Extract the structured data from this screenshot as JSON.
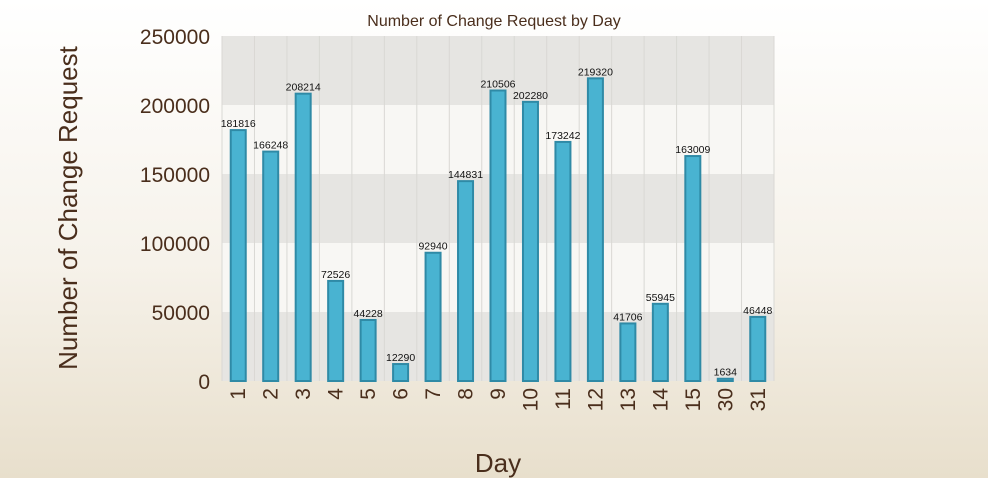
{
  "chart_data": {
    "type": "bar",
    "title": "Number of Change Request by Day",
    "xlabel": "Day",
    "ylabel": "Number of Change Request",
    "categories": [
      "1",
      "2",
      "3",
      "4",
      "5",
      "6",
      "7",
      "8",
      "9",
      "10",
      "11",
      "12",
      "13",
      "14",
      "15",
      "30",
      "31"
    ],
    "values": [
      181816,
      166248,
      208214,
      72526,
      44228,
      12290,
      92940,
      144831,
      210506,
      202280,
      173242,
      219320,
      41706,
      55945,
      163009,
      1634,
      46448
    ],
    "data_labels": [
      "181816",
      "166248",
      "208214",
      "72526",
      "44228",
      "12290",
      "92940",
      "144831",
      "210506",
      "202280",
      "173242",
      "219320",
      "41706",
      "55945",
      "163009",
      "1634",
      "46448"
    ],
    "ylim": [
      0,
      250000
    ],
    "yticks": [
      "0",
      "50000",
      "100000",
      "150000",
      "200000",
      "250000"
    ],
    "grid": true,
    "legend": "none",
    "colors": {
      "bar_fill": "#49b3d1",
      "bar_stroke": "#2f8aa6",
      "band_dark": "#e6e5e2",
      "band_light": "#f8f7f4",
      "text": "#4a2e1c"
    }
  }
}
